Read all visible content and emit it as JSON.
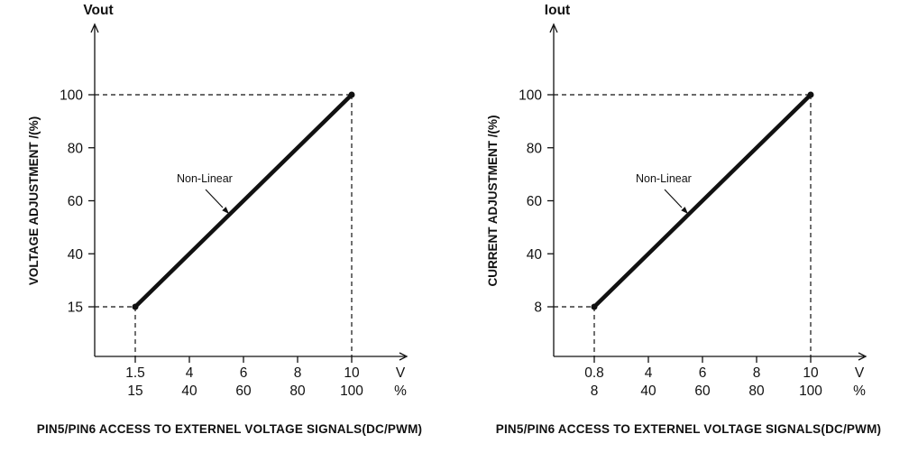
{
  "page": {
    "background": "#ffffff",
    "ink_color": "#111111"
  },
  "chart_data": [
    {
      "type": "line",
      "top_axis_label": "Vout",
      "ylabel": "VOLTAGE ADJUSTMENT /(%)",
      "y_tick_labels": [
        "100",
        "80",
        "60",
        "40",
        "15"
      ],
      "x_tick_labels_v": [
        "1.5",
        "4",
        "6",
        "8",
        "10"
      ],
      "x_tick_labels_pct": [
        "15",
        "40",
        "60",
        "80",
        "100"
      ],
      "x_unit_labels": [
        "V",
        "%"
      ],
      "x_axis_range_v": [
        1.5,
        10
      ],
      "y_axis_range_pct": [
        15,
        100
      ],
      "line_points_v_pct": [
        {
          "v": "1.5",
          "pct": "15"
        },
        {
          "v": "10",
          "pct": "100"
        }
      ],
      "dashed_guides": [
        {
          "at_pct": "100",
          "to_v": "10"
        },
        {
          "at_pct": "15",
          "to_v": "1.5"
        }
      ],
      "annotation": "Non-Linear",
      "caption": "PIN5/PIN6 ACCESS TO EXTERNEL VOLTAGE SIGNALS(DC/PWM)",
      "line_color": "#111111",
      "grid": false,
      "legend": "none"
    },
    {
      "type": "line",
      "top_axis_label": "Iout",
      "ylabel": "CURRENT ADJUSTMENT /(%)",
      "y_tick_labels": [
        "100",
        "80",
        "60",
        "40",
        "8"
      ],
      "x_tick_labels_v": [
        "0.8",
        "4",
        "6",
        "8",
        "10"
      ],
      "x_tick_labels_pct": [
        "8",
        "40",
        "60",
        "80",
        "100"
      ],
      "x_unit_labels": [
        "V",
        "%"
      ],
      "x_axis_range_v": [
        0.8,
        10
      ],
      "y_axis_range_pct": [
        8,
        100
      ],
      "line_points_v_pct": [
        {
          "v": "0.8",
          "pct": "8"
        },
        {
          "v": "10",
          "pct": "100"
        }
      ],
      "dashed_guides": [
        {
          "at_pct": "100",
          "to_v": "10"
        },
        {
          "at_pct": "8",
          "to_v": "0.8"
        }
      ],
      "annotation": "Non-Linear",
      "caption": "PIN5/PIN6 ACCESS TO EXTERNEL VOLTAGE SIGNALS(DC/PWM)",
      "line_color": "#111111",
      "grid": false,
      "legend": "none"
    }
  ]
}
